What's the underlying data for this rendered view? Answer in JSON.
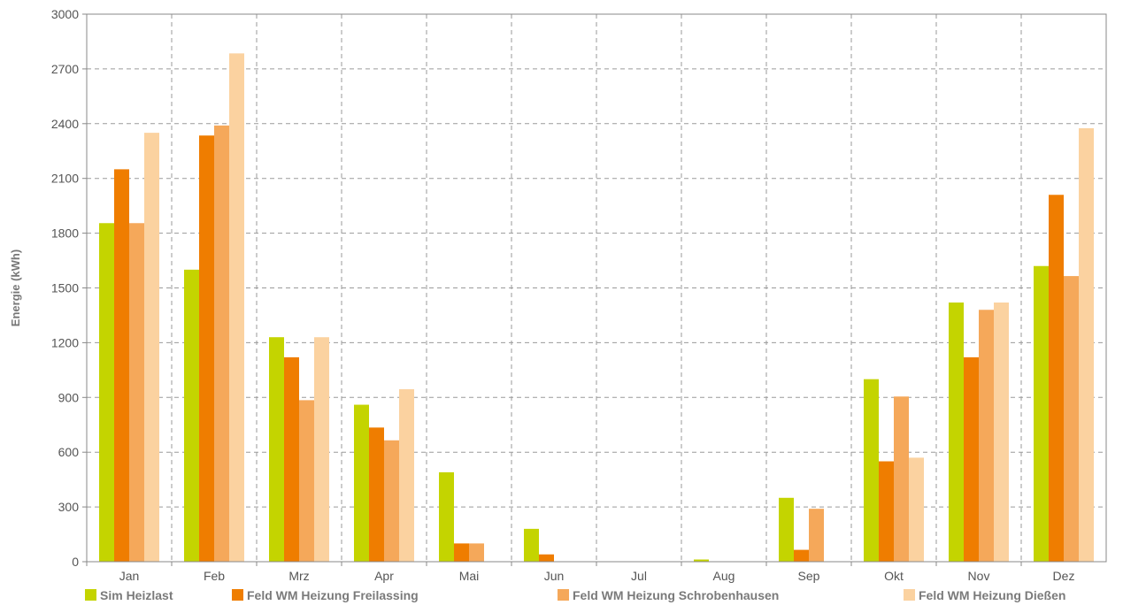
{
  "chart_data": {
    "type": "bar",
    "ylabel": "Energie (kWh)",
    "xlabel": "",
    "ylim": [
      0,
      3000
    ],
    "yticks": [
      0,
      300,
      600,
      900,
      1200,
      1500,
      1800,
      2100,
      2400,
      2700,
      3000
    ],
    "grid": true,
    "legend_position": "bottom",
    "categories": [
      "Jan",
      "Feb",
      "Mrz",
      "Apr",
      "Mai",
      "Jun",
      "Jul",
      "Aug",
      "Sep",
      "Okt",
      "Nov",
      "Dez"
    ],
    "series": [
      {
        "name": "Sim Heizlast",
        "color": "#c4d400",
        "values": [
          1855,
          1600,
          1230,
          860,
          490,
          180,
          0,
          12,
          350,
          1000,
          1420,
          1620
        ]
      },
      {
        "name": "Feld WM Heizung Freilassing",
        "color": "#ef7d00",
        "values": [
          2150,
          2335,
          1120,
          735,
          100,
          40,
          0,
          0,
          65,
          550,
          1120,
          2010
        ]
      },
      {
        "name": "Feld WM Heizung Schrobenhausen",
        "color": "#f5a85a",
        "values": [
          1855,
          2390,
          885,
          665,
          100,
          0,
          0,
          0,
          290,
          905,
          1380,
          1565
        ]
      },
      {
        "name": "Feld WM Heizung Dießen",
        "color": "#fbd2a0",
        "values": [
          2350,
          2785,
          1230,
          945,
          0,
          0,
          0,
          0,
          0,
          570,
          1420,
          2375
        ]
      }
    ]
  }
}
